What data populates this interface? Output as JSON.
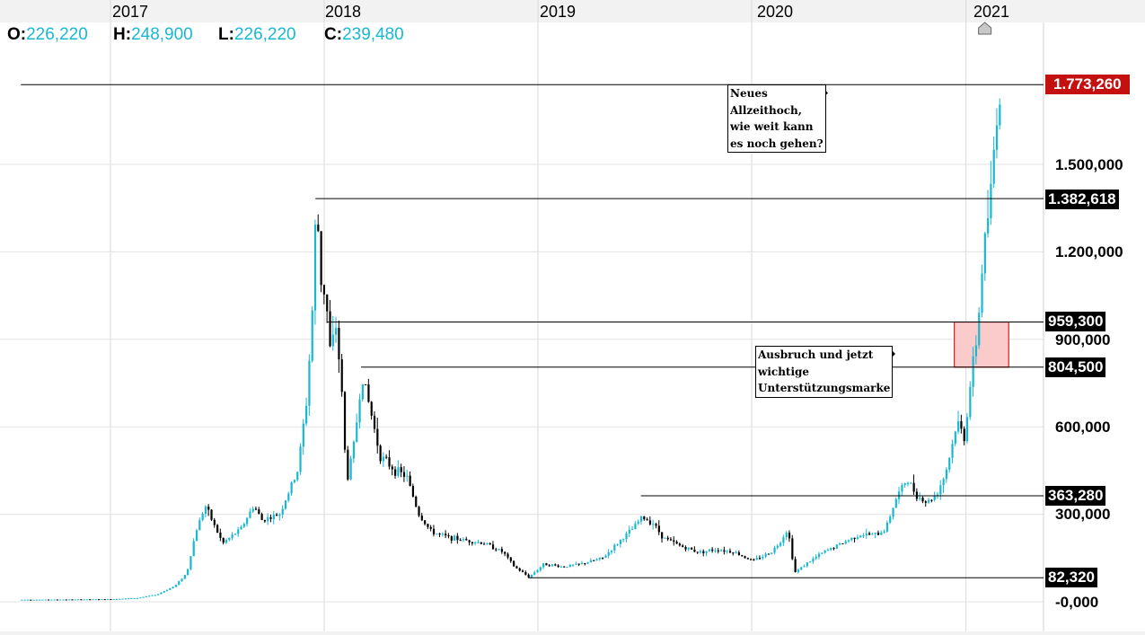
{
  "ohlc": {
    "o_label": "O:",
    "o_value": "226,220",
    "h_label": "H:",
    "h_value": "248,900",
    "l_label": "L:",
    "l_value": "226,220",
    "c_label": "C:",
    "c_value": "239,480"
  },
  "chart_data": {
    "type": "candlestick",
    "x_ticks": [
      "2017",
      "2018",
      "2019",
      "2020",
      "2021"
    ],
    "y_ticks": [
      {
        "label": "1.500,000",
        "value": 1500000
      },
      {
        "label": "1.200,000",
        "value": 1200000
      },
      {
        "label": "900,000",
        "value": 900000
      },
      {
        "label": "600,000",
        "value": 600000
      },
      {
        "label": "300,000",
        "value": 300000
      },
      {
        "label": "-0,000",
        "value": 0
      }
    ],
    "ylim": [
      -40000,
      2080000
    ],
    "grid": true,
    "levels": [
      {
        "label": "1.773,260",
        "value": 1773260,
        "style": "red",
        "from_date": "2016-08-01"
      },
      {
        "label": "1.382,618",
        "value": 1382618,
        "style": "black",
        "from_date": "2017-12-17"
      },
      {
        "label": "959,300",
        "value": 959300,
        "style": "black",
        "from_date": "2018-01-06"
      },
      {
        "label": "804,500",
        "value": 804500,
        "style": "black",
        "from_date": "2018-03-05"
      },
      {
        "label": "363,280",
        "value": 363280,
        "style": "black",
        "from_date": "2019-06-26"
      },
      {
        "label": "82,320",
        "value": 82320,
        "style": "black",
        "from_date": "2018-12-15"
      }
    ],
    "zone": {
      "from_date": "2020-12-12",
      "to_date": "2021-03-15",
      "low": 804500,
      "high": 959300,
      "color": "#fbcaca",
      "border": "#e02020"
    },
    "marker_date": "2021-01-01",
    "annotations": [
      {
        "lines": [
          "Neues",
          "Allzeithoch,",
          "wie weit kann",
          "es noch gehen?"
        ]
      },
      {
        "lines": [
          "Ausbruch und jetzt",
          "wichtige",
          "Unterstützungsmarke"
        ]
      }
    ],
    "trend": [
      [
        "2016-08-01",
        7000
      ],
      [
        "2016-11-01",
        8000
      ],
      [
        "2017-01-01",
        9000
      ],
      [
        "2017-02-15",
        13000
      ],
      [
        "2017-03-20",
        25000
      ],
      [
        "2017-04-20",
        55000
      ],
      [
        "2017-05-10",
        100000
      ],
      [
        "2017-05-25",
        240000
      ],
      [
        "2017-06-10",
        330000
      ],
      [
        "2017-07-10",
        200000
      ],
      [
        "2017-08-10",
        250000
      ],
      [
        "2017-09-01",
        330000
      ],
      [
        "2017-09-15",
        280000
      ],
      [
        "2017-10-15",
        300000
      ],
      [
        "2017-11-15",
        450000
      ],
      [
        "2017-12-01",
        700000
      ],
      [
        "2017-12-10",
        1000000
      ],
      [
        "2017-12-17",
        1382618
      ],
      [
        "2017-12-25",
        1100000
      ],
      [
        "2018-01-02",
        1050000
      ],
      [
        "2018-01-10",
        850000
      ],
      [
        "2018-01-20",
        950000
      ],
      [
        "2018-02-01",
        650000
      ],
      [
        "2018-02-06",
        400000
      ],
      [
        "2018-02-20",
        550000
      ],
      [
        "2018-03-05",
        780000
      ],
      [
        "2018-03-20",
        650000
      ],
      [
        "2018-04-05",
        500000
      ],
      [
        "2018-05-01",
        450000
      ],
      [
        "2018-05-20",
        430000
      ],
      [
        "2018-06-10",
        300000
      ],
      [
        "2018-07-01",
        240000
      ],
      [
        "2018-08-01",
        220000
      ],
      [
        "2018-09-01",
        210000
      ],
      [
        "2018-10-01",
        200000
      ],
      [
        "2018-11-01",
        170000
      ],
      [
        "2018-11-20",
        120000
      ],
      [
        "2018-12-15",
        85000
      ],
      [
        "2019-01-10",
        130000
      ],
      [
        "2019-02-10",
        120000
      ],
      [
        "2019-03-15",
        130000
      ],
      [
        "2019-04-20",
        150000
      ],
      [
        "2019-05-20",
        210000
      ],
      [
        "2019-06-10",
        250000
      ],
      [
        "2019-06-26",
        290000
      ],
      [
        "2019-07-15",
        270000
      ],
      [
        "2019-08-01",
        220000
      ],
      [
        "2019-09-01",
        190000
      ],
      [
        "2019-10-01",
        170000
      ],
      [
        "2019-11-01",
        180000
      ],
      [
        "2019-12-01",
        170000
      ],
      [
        "2020-01-01",
        140000
      ],
      [
        "2020-02-01",
        170000
      ],
      [
        "2020-02-15",
        200000
      ],
      [
        "2020-03-01",
        250000
      ],
      [
        "2020-03-13",
        100000
      ],
      [
        "2020-04-01",
        130000
      ],
      [
        "2020-05-01",
        170000
      ],
      [
        "2020-06-01",
        200000
      ],
      [
        "2020-07-01",
        230000
      ],
      [
        "2020-08-01",
        230000
      ],
      [
        "2020-08-15",
        250000
      ],
      [
        "2020-09-01",
        350000
      ],
      [
        "2020-09-20",
        420000
      ],
      [
        "2020-10-10",
        360000
      ],
      [
        "2020-10-25",
        340000
      ],
      [
        "2020-11-10",
        370000
      ],
      [
        "2020-11-25",
        440000
      ],
      [
        "2020-12-05",
        520000
      ],
      [
        "2020-12-15",
        620000
      ],
      [
        "2020-12-28",
        560000
      ],
      [
        "2021-01-05",
        720000
      ],
      [
        "2021-01-15",
        860000
      ],
      [
        "2021-01-22",
        1000000
      ],
      [
        "2021-01-28",
        1180000
      ],
      [
        "2021-02-03",
        1280000
      ],
      [
        "2021-02-10",
        1380000
      ],
      [
        "2021-02-15",
        1520000
      ],
      [
        "2021-02-20",
        1660000
      ],
      [
        "2021-02-25",
        1740000
      ],
      [
        "2021-03-02",
        1700000
      ]
    ]
  }
}
